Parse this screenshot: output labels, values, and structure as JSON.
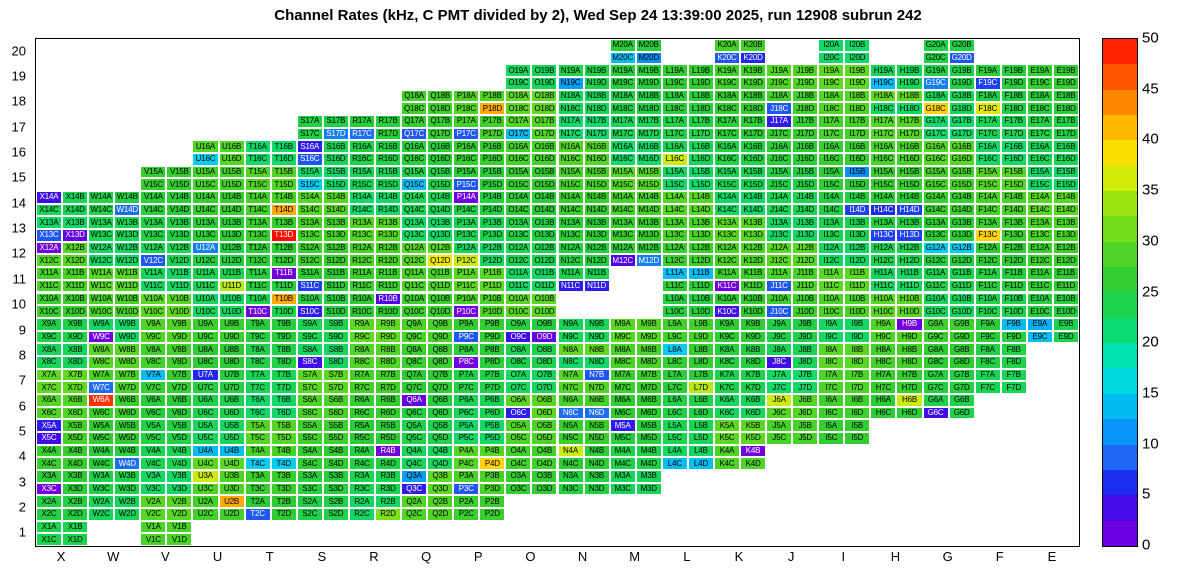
{
  "title": "Channel Rates (kHz, C PMT divided by 2), Wed Sep 24 13:39:00 2025, run 12908 subrun 242",
  "chart_data": {
    "type": "heatmap",
    "title": "Channel Rates (kHz, C PMT divided by 2), Wed Sep 24 13:39:00 2025, run 12908 subrun 242",
    "value_unit": "kHz",
    "zlim": [
      0,
      50
    ],
    "colorbar_ticks": [
      0,
      5,
      10,
      15,
      20,
      25,
      30,
      35,
      40,
      45,
      50
    ],
    "columns": [
      "X",
      "W",
      "V",
      "U",
      "T",
      "S",
      "R",
      "Q",
      "P",
      "O",
      "N",
      "M",
      "L",
      "K",
      "J",
      "I",
      "H",
      "G",
      "F",
      "E"
    ],
    "rows": [
      20,
      19,
      18,
      17,
      16,
      15,
      14,
      13,
      12,
      11,
      10,
      9,
      8,
      7,
      6,
      5,
      4,
      3,
      2,
      1
    ],
    "subchannels": [
      "A",
      "B",
      "C",
      "D"
    ],
    "row_extent": {
      "20": {
        "only": [
          "M",
          "K",
          "I",
          "G"
        ]
      },
      "19": {
        "from": "O",
        "to": "E"
      },
      "18": {
        "from": "Q",
        "to": "E"
      },
      "17": {
        "from": "S",
        "to": "E"
      },
      "16": {
        "from": "U",
        "to": "E"
      },
      "15": {
        "from": "V",
        "to": "E"
      },
      "14": {
        "from": "X",
        "to": "E"
      },
      "13": {
        "from": "X",
        "to": "E"
      },
      "12": {
        "from": "X",
        "to": "E"
      },
      "11": {
        "from": "X",
        "to": "E",
        "missing": [
          "M"
        ]
      },
      "10": {
        "from": "X",
        "to": "E",
        "missing": [
          "N",
          "M"
        ]
      },
      "9": {
        "from": "X",
        "to": "E"
      },
      "8": {
        "from": "X",
        "to": "F"
      },
      "7": {
        "from": "X",
        "to": "F"
      },
      "6": {
        "from": "X",
        "to": "G"
      },
      "5": {
        "from": "X",
        "to": "I"
      },
      "4": {
        "from": "X",
        "to": "K"
      },
      "3": {
        "from": "X",
        "to": "M"
      },
      "2": {
        "from": "X",
        "to": "P"
      },
      "1": {
        "only": [
          "X",
          "V"
        ]
      }
    },
    "default_value": 26,
    "default_value_jitter": 4,
    "channel_value_overrides": {
      "X14A": 4,
      "X13C": 8,
      "X13D": 2,
      "X12A": 1,
      "V12C": 8,
      "T13D": 50,
      "F13C": 40,
      "H13C": 7,
      "H13D": 7,
      "P14A": 1,
      "T14D": 42,
      "W14D": 9,
      "I14D": 7,
      "H14C": 6,
      "H14D": 7,
      "M20C": 14,
      "M20D": 11,
      "K20C": 8,
      "K20D": 6,
      "G20D": 8,
      "N19C": 12,
      "G19C": 10,
      "F19C": 7,
      "H19C": 14,
      "P18D": 42,
      "J18C": 8,
      "G18C": 40,
      "F18C": 37,
      "S17D": 10,
      "R17C": 9,
      "Q17C": 8,
      "P17C": 8,
      "O17C": 14,
      "J17A": 5,
      "S16A": 5,
      "S16C": 8,
      "L16C": 36,
      "U16C": 15,
      "S15C": 15,
      "P15C": 8,
      "Q15C": 14,
      "I15B": 11,
      "U12A": 10,
      "P12C": 36,
      "Q12D": 38,
      "M12C": 3,
      "M12D": 10,
      "G12A": 15,
      "G12B": 15,
      "T11B": 1,
      "U11D": 35,
      "S11C": 7,
      "N11C": 5,
      "N11D": 5,
      "L11A": 14,
      "L11B": 14,
      "K11C": 1,
      "J11C": 8,
      "T10B": 42,
      "T10C": 1,
      "R10B": 3,
      "S10C": 5,
      "P10C": 1,
      "K10C": 4,
      "J10C": 8,
      "W9C": 1,
      "O9C": 4,
      "O9D": 2,
      "P9C": 8,
      "H9B": 1,
      "F9B": 14,
      "E9A": 13,
      "E9C": 14,
      "S8C": 4,
      "P8C": 1,
      "J8C": 4,
      "L8A": 15,
      "U7A": 6,
      "W7C": 9,
      "V7A": 14,
      "N7B": 8,
      "L7D": 35,
      "W6A": 48,
      "Q6A": 2,
      "O6C": 5,
      "N6C": 9,
      "N6D": 9,
      "J6A": 36,
      "H6B": 36,
      "G6C": 4,
      "X5A": 5,
      "X5C": 4,
      "M5A": 5,
      "U4A": 14,
      "U4B": 14,
      "R4B": 1,
      "P4D": 40,
      "N4A": 36,
      "K4B": 1,
      "L4C": 14,
      "L4D": 14,
      "W4D": 9,
      "T4C": 15,
      "T4D": 15,
      "X3C": 1,
      "U3A": 36,
      "Q3A": 12,
      "Q3C": 5,
      "P3C": 8,
      "U2B": 42,
      "T2C": 8,
      "R2D": 32
    },
    "palette_stops": [
      [
        0,
        "#8200DC"
      ],
      [
        3,
        "#5000E6"
      ],
      [
        6,
        "#1E28F0"
      ],
      [
        9,
        "#1E6EF5"
      ],
      [
        12,
        "#00A0FA"
      ],
      [
        15,
        "#00CDF0"
      ],
      [
        18,
        "#00E6C8"
      ],
      [
        21,
        "#0ADC78"
      ],
      [
        24,
        "#1ED24B"
      ],
      [
        26,
        "#2ECC33"
      ],
      [
        28,
        "#46D228"
      ],
      [
        31,
        "#6EDC1E"
      ],
      [
        34,
        "#A0E614"
      ],
      [
        36,
        "#CDEB0A"
      ],
      [
        38,
        "#F0E600"
      ],
      [
        40,
        "#FFD200"
      ],
      [
        42,
        "#FFAA00"
      ],
      [
        44,
        "#FF8200"
      ],
      [
        46,
        "#FF5A00"
      ],
      [
        48,
        "#FF3200"
      ],
      [
        50,
        "#FF0A00"
      ]
    ],
    "colorbar_segments": 20
  }
}
